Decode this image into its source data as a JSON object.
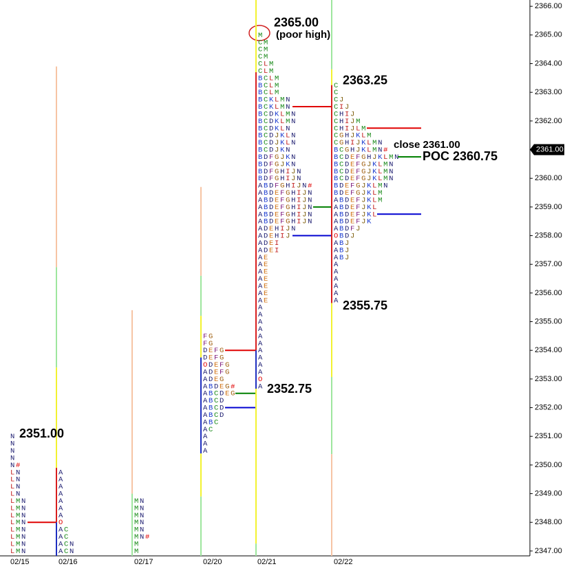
{
  "chart_data": {
    "type": "market-profile",
    "categories": [
      "02/15",
      "02/16",
      "02/17",
      "02/20",
      "02/21",
      "02/22"
    ],
    "ylim": [
      2346.83,
      2366.22
    ],
    "yticks": [
      {
        "value": 2347,
        "label": "2347.00"
      },
      {
        "value": 2348,
        "label": "2348.00"
      },
      {
        "value": 2349,
        "label": "2349.00"
      },
      {
        "value": 2350,
        "label": "2350.00"
      },
      {
        "value": 2351,
        "label": "2351.00"
      },
      {
        "value": 2352,
        "label": "2352.00"
      },
      {
        "value": 2353,
        "label": "2353.00"
      },
      {
        "value": 2354,
        "label": "2354.00"
      },
      {
        "value": 2355,
        "label": "2355.00"
      },
      {
        "value": 2356,
        "label": "2356.00"
      },
      {
        "value": 2357,
        "label": "2357.00"
      },
      {
        "value": 2358,
        "label": "2358.00"
      },
      {
        "value": 2359,
        "label": "2359.00"
      },
      {
        "value": 2360,
        "label": "2360.00"
      },
      {
        "value": 2361,
        "label": "2361.00"
      },
      {
        "value": 2362,
        "label": "2362.00"
      },
      {
        "value": 2363,
        "label": "2363.00"
      },
      {
        "value": 2364,
        "label": "2364.00"
      },
      {
        "value": 2365,
        "label": "2365.00"
      },
      {
        "value": 2366,
        "label": "2366.00"
      }
    ],
    "profiles": [
      {
        "high": 2351.0,
        "low": 2347.0,
        "rows": [
          "N",
          "N",
          "N",
          "N",
          "N#",
          "LN",
          "LN",
          "LN",
          "LN",
          "LMN",
          "LMN",
          "LMN",
          "LMN",
          "LMN",
          "LMN",
          "LMN",
          "LMN"
        ],
        "levels": [
          {
            "value": 2348.0,
            "color": "#e00000"
          }
        ],
        "bars": []
      },
      {
        "high": 2349.75,
        "low": 2347.0,
        "rows": [
          "A",
          "A",
          "A",
          "A",
          "A",
          "A",
          "A",
          "O",
          "AC",
          "AC",
          "ACN",
          "ACN"
        ],
        "levels": [],
        "bars": [
          {
            "from": 2363.9,
            "to": 2356.9,
            "color": "#f6c4a4"
          },
          {
            "from": 2356.9,
            "to": 2353.4,
            "color": "#9ee69e"
          },
          {
            "from": 2353.4,
            "to": 2349.9,
            "color": "#f2f230"
          },
          {
            "from": 2349.9,
            "to": 2348.0,
            "color": "#d81e1e"
          },
          {
            "from": 2348.0,
            "to": 2346.83,
            "color": "#1e2ec0"
          }
        ]
      },
      {
        "high": 2348.75,
        "low": 2347.0,
        "rows": [
          "MN",
          "MN",
          "MN",
          "MN",
          "MN",
          "MN#",
          "M",
          "M"
        ],
        "levels": [],
        "bars": [
          {
            "from": 2355.4,
            "to": 2349.0,
            "color": "#f6c4a4"
          },
          {
            "from": 2349.0,
            "to": 2346.83,
            "color": "#9ee69e"
          }
        ]
      },
      {
        "high": 2354.5,
        "low": 2350.5,
        "rows": [
          "FG",
          "FG",
          "DEFG",
          "DEFG",
          "ODEFG",
          "ADEFG",
          "ADEG",
          "ABDEG#",
          "ABCDEG",
          "ABCD",
          "ABCD",
          "ABCD",
          "ABC",
          "AC",
          "A",
          "A",
          "A"
        ],
        "levels": [
          {
            "value": 2354.0,
            "color": "#e00000"
          },
          {
            "value": 2352.5,
            "color": "#008000"
          },
          {
            "value": 2352.0,
            "color": "#0000d0"
          }
        ],
        "bars": [
          {
            "from": 2359.7,
            "to": 2356.6,
            "color": "#f6c4a4"
          },
          {
            "from": 2356.6,
            "to": 2355.2,
            "color": "#9ee69e"
          },
          {
            "from": 2355.2,
            "to": 2353.75,
            "color": "#f2f230"
          },
          {
            "from": 2353.75,
            "to": 2350.4,
            "color": "#1e2ec0"
          },
          {
            "from": 2350.4,
            "to": 2348.9,
            "color": "#f2f230"
          },
          {
            "from": 2348.9,
            "to": 2346.83,
            "color": "#9ee69e"
          }
        ]
      },
      {
        "high": 2365.0,
        "low": 2352.75,
        "rows": [
          "M",
          "CM",
          "CM",
          "CM",
          "CLM",
          "CLM",
          "BCLM",
          "BCLM",
          "BCLM",
          "BCKLMN",
          "BCKLMN",
          "BCDKLMN",
          "BCDKLMN",
          "BCDKLN",
          "BCDJKLN",
          "BCDJKLN",
          "BCDJKN",
          "BDFGJKN",
          "BDFGJKN",
          "BDFGHIJN",
          "BDFGHIJN",
          "ABDFGHIJN#",
          "ABDEFGHIJN",
          "ABDEFGHIJN",
          "ABDEFGHIJN",
          "ABDEFGHIJN",
          "ABDEFGHIJN",
          "ADEHIJN",
          "ADEHIJ",
          "ADEI",
          "ADEI",
          "AE",
          "AE",
          "AE",
          "AE",
          "AE",
          "AE",
          "AE",
          "A",
          "A",
          "A",
          "A",
          "A",
          "A",
          "A",
          "A",
          "A",
          "A",
          "O",
          "A"
        ],
        "levels": [
          {
            "value": 2362.5,
            "color": "#e00000"
          },
          {
            "value": 2359.0,
            "color": "#008000"
          },
          {
            "value": 2358.0,
            "color": "#0000d0"
          }
        ],
        "bars": [
          {
            "from": 2366.22,
            "to": 2363.7,
            "color": "#f2f230"
          },
          {
            "from": 2363.7,
            "to": 2354.0,
            "color": "#d81e1e"
          },
          {
            "from": 2354.0,
            "to": 2352.66,
            "color": "#1e2ec0"
          },
          {
            "from": 2352.66,
            "to": 2347.26,
            "color": "#f2f230"
          },
          {
            "from": 2347.26,
            "to": 2346.83,
            "color": "#9ee69e"
          }
        ]
      },
      {
        "high": 2363.25,
        "low": 2355.75,
        "rows": [
          "C",
          "C",
          "CJ",
          "CIJ",
          "CHIJ",
          "CHIJM",
          "CHIJLM",
          "CGHJKLM",
          "CGHIJKLMN",
          "BCGHJKLMN#",
          "BCDEFGHJKLMN",
          "BCDEFGJKLMN",
          "BCDEFGJKLMN",
          "BCDEFGJKLMN",
          "BDEFGJKLMN",
          "BDEFGJKLM",
          "ABDEFJKLM",
          "ABDEFJKL",
          "ABDEFJKL",
          "ABDEFJK",
          "ABDFJ",
          "OBDJ",
          "ABJ",
          "ABJ",
          "ABJ",
          "A",
          "A",
          "A",
          "A",
          "A",
          "A"
        ],
        "levels": [
          {
            "value": 2361.75,
            "color": "#e00000"
          },
          {
            "value": 2360.75,
            "color": "#008000"
          },
          {
            "value": 2358.75,
            "color": "#0000d0"
          }
        ],
        "bars": [
          {
            "from": 2366.22,
            "to": 2363.8,
            "color": "#9ee69e"
          },
          {
            "from": 2363.8,
            "to": 2363.25,
            "color": "#f2f230"
          },
          {
            "from": 2363.25,
            "to": 2355.65,
            "color": "#d81e1e"
          },
          {
            "from": 2355.65,
            "to": 2353.07,
            "color": "#f2f230"
          },
          {
            "from": 2353.07,
            "to": 2350.38,
            "color": "#9ee69e"
          },
          {
            "from": 2350.38,
            "to": 2346.83,
            "color": "#f6c4a4"
          }
        ]
      }
    ],
    "annotations": [
      {
        "value": 2365.0,
        "label": "2365.00"
      },
      {
        "value": 2363.25,
        "label": "2363.25"
      },
      {
        "value": 2355.75,
        "label": "2355.75"
      },
      {
        "value": 2352.75,
        "label": "2352.75"
      },
      {
        "value": 2351.0,
        "label": "2351.00"
      }
    ],
    "notes": [
      "(poor high)",
      "close 2361.00",
      "POC 2360.75"
    ],
    "last_price": {
      "value": 2361,
      "label": "2361.00"
    }
  }
}
